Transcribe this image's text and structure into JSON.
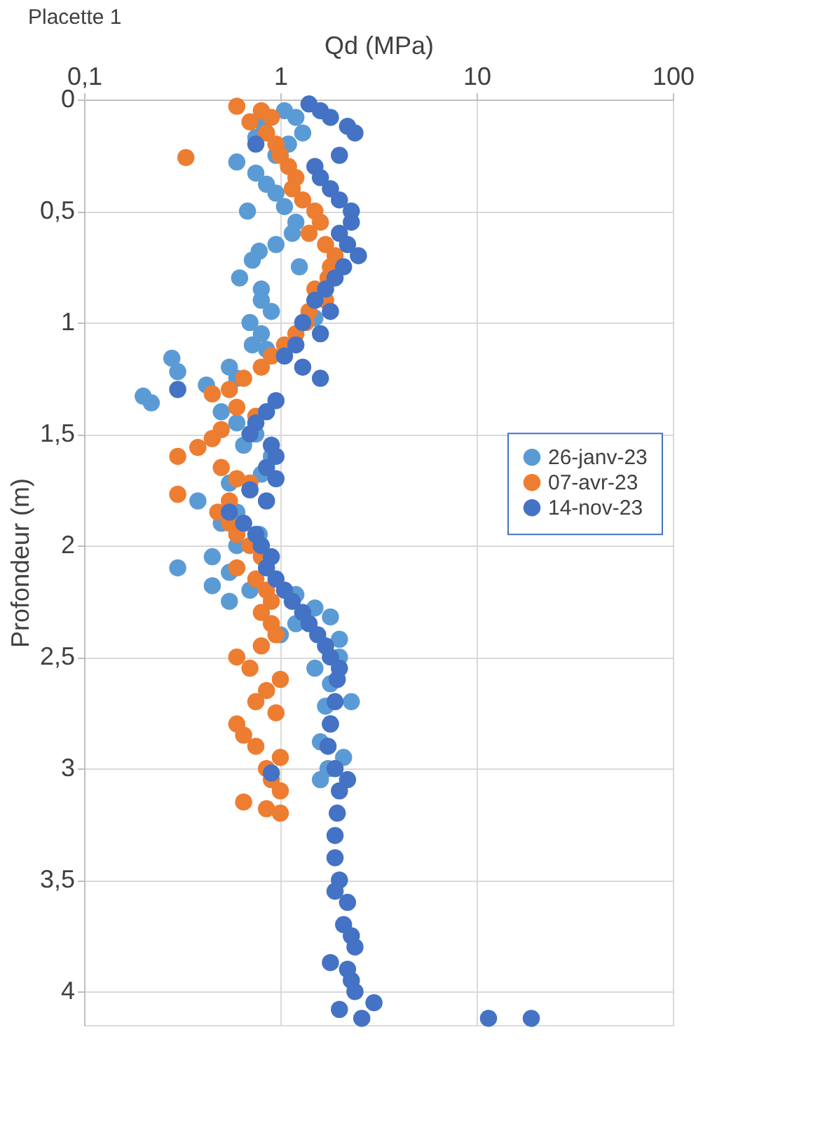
{
  "chart_data": {
    "type": "scatter",
    "title": "Placette 1",
    "xlabel": "Qd (MPa)",
    "ylabel": "Profondeur (m)",
    "log": "x",
    "grid": true,
    "legend": "right",
    "marker": "circle",
    "xlim": [
      0.1,
      100
    ],
    "xticks": [
      {
        "value": 0.1,
        "label": "0,1"
      },
      1,
      10,
      100
    ],
    "ylim": [
      4.15,
      0
    ],
    "yticks": [
      0,
      {
        "value": 0.5,
        "label": "0,5"
      },
      1,
      {
        "value": 1.5,
        "label": "1,5"
      },
      2,
      {
        "value": 2.5,
        "label": "2,5"
      },
      3,
      {
        "value": 3.5,
        "label": "3,5"
      },
      4
    ],
    "series": [
      {
        "name": "26-janv-23",
        "color": "#5b9bd5",
        "x": [
          1.05,
          1.2,
          0.8,
          1.3,
          0.75,
          1.1,
          0.95,
          0.6,
          0.75,
          0.85,
          0.95,
          1.05,
          0.68,
          1.2,
          1.15,
          0.95,
          0.78,
          0.72,
          1.25,
          0.62,
          0.8,
          0.8,
          0.9,
          1.5,
          0.7,
          0.8,
          0.72,
          0.85,
          0.28,
          0.55,
          0.3,
          0.6,
          0.42,
          0.2,
          0.22,
          0.5,
          0.6,
          0.75,
          0.65,
          0.9,
          0.8,
          0.55,
          0.38,
          0.7,
          0.6,
          0.5,
          0.78,
          0.6,
          0.45,
          0.3,
          0.55,
          0.45,
          0.7,
          0.55,
          1.2,
          1.5,
          1.8,
          1.2,
          1.0,
          2.0,
          2.0,
          1.5,
          1.8,
          2.3,
          1.7,
          1.8,
          1.6,
          2.1,
          1.75,
          1.6
        ],
        "values": [
          0.05,
          0.08,
          0.1,
          0.15,
          0.17,
          0.2,
          0.25,
          0.28,
          0.33,
          0.38,
          0.42,
          0.48,
          0.5,
          0.55,
          0.6,
          0.65,
          0.68,
          0.72,
          0.75,
          0.8,
          0.85,
          0.9,
          0.95,
          0.98,
          1.0,
          1.05,
          1.1,
          1.12,
          1.16,
          1.2,
          1.22,
          1.25,
          1.28,
          1.33,
          1.36,
          1.4,
          1.45,
          1.5,
          1.55,
          1.6,
          1.68,
          1.72,
          1.8,
          1.75,
          1.85,
          1.9,
          1.95,
          2.0,
          2.05,
          2.1,
          2.12,
          2.18,
          2.2,
          2.25,
          2.22,
          2.28,
          2.32,
          2.35,
          2.4,
          2.42,
          2.5,
          2.55,
          2.62,
          2.7,
          2.72,
          2.8,
          2.88,
          2.95,
          3.0,
          3.05
        ]
      },
      {
        "name": "07-avr-23",
        "color": "#ed7d31",
        "x": [
          0.6,
          0.8,
          0.9,
          0.7,
          0.85,
          0.95,
          0.33,
          1.0,
          1.1,
          1.2,
          1.15,
          1.3,
          1.5,
          1.6,
          1.4,
          1.7,
          1.9,
          1.8,
          1.75,
          1.5,
          1.7,
          1.4,
          1.35,
          1.2,
          1.05,
          0.9,
          0.8,
          0.65,
          0.55,
          0.45,
          0.6,
          0.75,
          0.5,
          0.45,
          0.38,
          0.3,
          0.5,
          0.6,
          0.7,
          0.3,
          0.55,
          0.48,
          0.55,
          0.6,
          0.7,
          0.8,
          0.6,
          0.75,
          0.85,
          0.9,
          0.8,
          0.9,
          0.95,
          0.8,
          0.6,
          0.7,
          1.0,
          0.85,
          0.75,
          0.95,
          0.6,
          0.65,
          0.75,
          1.0,
          0.85,
          0.9,
          1.0,
          0.65,
          0.85,
          1.0
        ],
        "values": [
          0.03,
          0.05,
          0.08,
          0.1,
          0.15,
          0.2,
          0.26,
          0.25,
          0.3,
          0.35,
          0.4,
          0.45,
          0.5,
          0.55,
          0.6,
          0.65,
          0.7,
          0.75,
          0.8,
          0.85,
          0.9,
          0.95,
          1.0,
          1.05,
          1.1,
          1.15,
          1.2,
          1.25,
          1.3,
          1.32,
          1.38,
          1.42,
          1.48,
          1.52,
          1.56,
          1.6,
          1.65,
          1.7,
          1.72,
          1.77,
          1.8,
          1.85,
          1.9,
          1.95,
          2.0,
          2.05,
          2.1,
          2.15,
          2.2,
          2.25,
          2.3,
          2.35,
          2.4,
          2.45,
          2.5,
          2.55,
          2.6,
          2.65,
          2.7,
          2.75,
          2.8,
          2.85,
          2.9,
          2.95,
          3.0,
          3.05,
          3.1,
          3.15,
          3.18,
          3.2
        ]
      },
      {
        "name": "14-nov-23",
        "color": "#4472c4",
        "x": [
          1.4,
          1.6,
          1.8,
          2.2,
          2.4,
          0.75,
          2.0,
          1.5,
          1.6,
          1.8,
          2.0,
          2.3,
          2.3,
          2.0,
          2.2,
          2.5,
          2.1,
          1.9,
          1.7,
          1.5,
          1.8,
          1.3,
          1.6,
          1.2,
          1.05,
          1.3,
          1.6,
          0.3,
          0.95,
          0.85,
          0.75,
          0.7,
          0.9,
          0.95,
          0.85,
          0.95,
          0.7,
          0.85,
          0.55,
          0.65,
          0.75,
          0.8,
          0.9,
          0.85,
          0.95,
          1.05,
          1.15,
          1.3,
          1.4,
          1.55,
          1.7,
          1.8,
          2.0,
          1.95,
          1.9,
          1.8,
          1.75,
          1.9,
          0.9,
          2.2,
          2.0,
          1.95,
          1.9,
          1.9,
          2.0,
          1.9,
          2.2,
          2.1,
          2.3,
          2.4,
          1.8,
          2.2,
          2.3,
          2.4,
          3.0,
          2.0,
          2.6,
          11.5,
          19
        ],
        "values": [
          0.02,
          0.05,
          0.08,
          0.12,
          0.15,
          0.2,
          0.25,
          0.3,
          0.35,
          0.4,
          0.45,
          0.5,
          0.55,
          0.6,
          0.65,
          0.7,
          0.75,
          0.8,
          0.85,
          0.9,
          0.95,
          1.0,
          1.05,
          1.1,
          1.15,
          1.2,
          1.25,
          1.3,
          1.35,
          1.4,
          1.45,
          1.5,
          1.55,
          1.6,
          1.65,
          1.7,
          1.75,
          1.8,
          1.85,
          1.9,
          1.95,
          2.0,
          2.05,
          2.1,
          2.15,
          2.2,
          2.25,
          2.3,
          2.35,
          2.4,
          2.45,
          2.5,
          2.55,
          2.6,
          2.7,
          2.8,
          2.9,
          3.0,
          3.02,
          3.05,
          3.1,
          3.2,
          3.3,
          3.4,
          3.5,
          3.55,
          3.6,
          3.7,
          3.75,
          3.8,
          3.87,
          3.9,
          3.95,
          4.0,
          4.05,
          4.08,
          4.12,
          4.12,
          4.12
        ]
      }
    ]
  }
}
